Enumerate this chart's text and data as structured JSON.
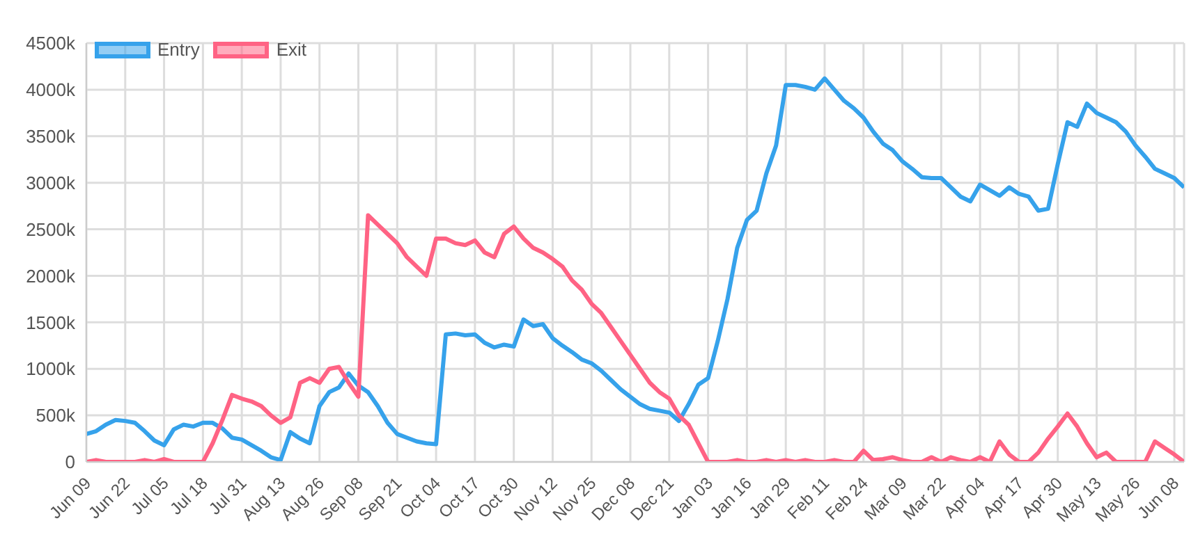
{
  "chart_data": {
    "type": "line",
    "categories": [
      "Jun 09",
      null,
      null,
      null,
      "Jun 22",
      null,
      null,
      null,
      "Jul 05",
      null,
      null,
      null,
      "Jul 18",
      null,
      null,
      null,
      "Jul 31",
      null,
      null,
      null,
      "Aug 13",
      null,
      null,
      null,
      "Aug 26",
      null,
      null,
      null,
      "Sep 08",
      null,
      null,
      null,
      "Sep 21",
      null,
      null,
      null,
      "Oct 04",
      null,
      null,
      null,
      "Oct 17",
      null,
      null,
      null,
      "Oct 30",
      null,
      null,
      null,
      "Nov 12",
      null,
      null,
      null,
      "Nov 25",
      null,
      null,
      null,
      "Dec 08",
      null,
      null,
      null,
      "Dec 21",
      null,
      null,
      null,
      "Jan 03",
      null,
      null,
      null,
      "Jan 16",
      null,
      null,
      null,
      "Jan 29",
      null,
      null,
      null,
      "Feb 11",
      null,
      null,
      null,
      "Feb 24",
      null,
      null,
      null,
      "Mar 09",
      null,
      null,
      null,
      "Mar 22",
      null,
      null,
      null,
      "Apr 04",
      null,
      null,
      null,
      "Apr 17",
      null,
      null,
      null,
      "Apr 30",
      null,
      null,
      null,
      "May 13",
      null,
      null,
      null,
      "May 26",
      null,
      null,
      null,
      "Jun 08",
      null
    ],
    "series": [
      {
        "name": "Entry",
        "color": "#36a2eb",
        "values": [
          300000,
          330000,
          400000,
          450000,
          440000,
          420000,
          330000,
          230000,
          180000,
          350000,
          400000,
          380000,
          420000,
          420000,
          360000,
          260000,
          240000,
          180000,
          120000,
          50000,
          20000,
          320000,
          250000,
          200000,
          600000,
          750000,
          800000,
          950000,
          820000,
          750000,
          600000,
          420000,
          300000,
          260000,
          220000,
          200000,
          190000,
          1370000,
          1380000,
          1360000,
          1370000,
          1280000,
          1230000,
          1260000,
          1240000,
          1530000,
          1460000,
          1480000,
          1330000,
          1250000,
          1180000,
          1100000,
          1060000,
          980000,
          880000,
          780000,
          700000,
          620000,
          570000,
          550000,
          530000,
          440000,
          620000,
          830000,
          900000,
          1300000,
          1750000,
          2300000,
          2600000,
          2700000,
          3100000,
          3400000,
          4050000,
          4050000,
          4030000,
          4000000,
          4120000,
          4000000,
          3880000,
          3800000,
          3700000,
          3550000,
          3420000,
          3350000,
          3230000,
          3150000,
          3060000,
          3050000,
          3050000,
          2950000,
          2850000,
          2800000,
          2980000,
          2920000,
          2860000,
          2950000,
          2880000,
          2850000,
          2700000,
          2720000,
          3200000,
          3650000,
          3600000,
          3850000,
          3750000,
          3700000,
          3650000,
          3550000,
          3400000,
          3280000,
          3150000,
          3100000,
          3050000,
          2950000
        ]
      },
      {
        "name": "Exit",
        "color": "#ff6384",
        "values": [
          0,
          20000,
          0,
          0,
          0,
          0,
          20000,
          0,
          30000,
          0,
          0,
          0,
          0,
          200000,
          450000,
          720000,
          680000,
          650000,
          600000,
          500000,
          420000,
          480000,
          850000,
          900000,
          850000,
          1000000,
          1020000,
          850000,
          700000,
          2650000,
          2550000,
          2450000,
          2350000,
          2200000,
          2100000,
          2000000,
          2400000,
          2400000,
          2350000,
          2330000,
          2380000,
          2250000,
          2200000,
          2450000,
          2530000,
          2400000,
          2300000,
          2250000,
          2180000,
          2100000,
          1950000,
          1850000,
          1700000,
          1600000,
          1450000,
          1300000,
          1150000,
          1000000,
          850000,
          750000,
          680000,
          500000,
          400000,
          200000,
          0,
          0,
          0,
          20000,
          0,
          0,
          20000,
          0,
          20000,
          0,
          20000,
          0,
          0,
          20000,
          0,
          0,
          120000,
          20000,
          30000,
          50000,
          20000,
          0,
          0,
          50000,
          0,
          50000,
          20000,
          0,
          50000,
          0,
          220000,
          80000,
          0,
          0,
          100000,
          250000,
          380000,
          520000,
          380000,
          200000,
          50000,
          100000,
          0,
          0,
          0,
          0,
          220000,
          150000,
          80000,
          0
        ]
      }
    ],
    "ylim": [
      0,
      4500000
    ],
    "yticks": [
      0,
      {
        "value": 500000,
        "label": "500k"
      },
      {
        "value": 1000000,
        "label": "1000k"
      },
      {
        "value": 1500000,
        "label": "1500k"
      },
      {
        "value": 2000000,
        "label": "2000k"
      },
      {
        "value": 2500000,
        "label": "2500k"
      },
      {
        "value": 3000000,
        "label": "3000k"
      },
      {
        "value": 3500000,
        "label": "3500k"
      },
      {
        "value": 4000000,
        "label": "4000k"
      },
      {
        "value": 4500000,
        "label": "4500k"
      }
    ],
    "grid": true,
    "legend": "top left",
    "marker": "none",
    "line_style": "solid"
  }
}
